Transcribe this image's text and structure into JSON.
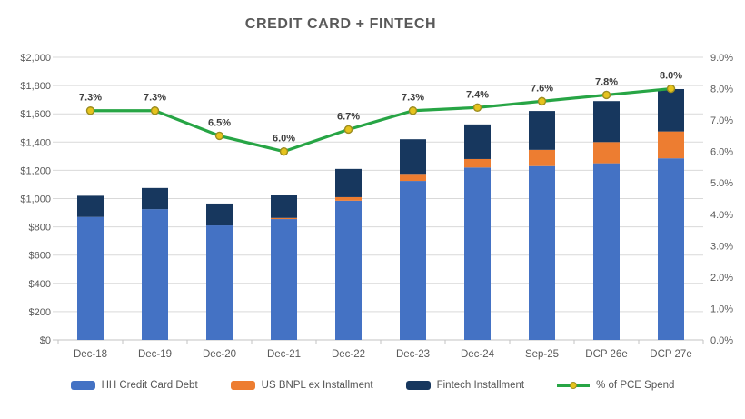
{
  "chart_data": {
    "type": "bar",
    "subtype": "stacked-column-with-line",
    "title": "CREDIT CARD + FINTECH",
    "categories": [
      "Dec-18",
      "Dec-19",
      "Dec-20",
      "Dec-21",
      "Dec-22",
      "Dec-23",
      "Dec-24",
      "Sep-25",
      "DCP 26e",
      "DCP 27e"
    ],
    "series": [
      {
        "name": "HH Credit Card Debt",
        "type": "bar",
        "axis": "left",
        "color": "#4472c4",
        "values": [
          870,
          925,
          810,
          855,
          985,
          1125,
          1220,
          1230,
          1250,
          1285
        ]
      },
      {
        "name": "US BNPL ex Installment",
        "type": "bar",
        "axis": "left",
        "color": "#ed7d31",
        "values": [
          0,
          0,
          0,
          8,
          25,
          50,
          60,
          115,
          150,
          190
        ]
      },
      {
        "name": "Fintech Installment",
        "type": "bar",
        "axis": "left",
        "color": "#17375e",
        "values": [
          150,
          150,
          155,
          160,
          200,
          245,
          245,
          275,
          290,
          300
        ]
      },
      {
        "name": "% of PCE Spend",
        "type": "line",
        "axis": "right",
        "color": "#27a545",
        "marker_fill": "#e6c31d",
        "marker_stroke": "#9c8d21",
        "values": [
          7.3,
          7.3,
          6.5,
          6.0,
          6.7,
          7.3,
          7.4,
          7.6,
          7.8,
          8.0
        ],
        "labels": [
          "7.3%",
          "7.3%",
          "6.5%",
          "6.0%",
          "6.7%",
          "7.3%",
          "7.4%",
          "7.6%",
          "7.8%",
          "8.0%"
        ]
      }
    ],
    "left_axis": {
      "min": 0,
      "max": 2000,
      "step": 200,
      "tick_labels_top_to_bottom": [
        "$2,000",
        "$1,800",
        "$1,600",
        "$1,400",
        "$1,200",
        "$1,000",
        "$800",
        "$600",
        "$400",
        "$200",
        "$0"
      ]
    },
    "right_axis": {
      "min": 0,
      "max": 9,
      "step": 1,
      "tick_labels_top_to_bottom": [
        "9.0%",
        "8.0%",
        "7.0%",
        "6.0%",
        "5.0%",
        "4.0%",
        "3.0%",
        "2.0%",
        "1.0%",
        "0.0%"
      ]
    },
    "grid": true,
    "legend_position": "bottom",
    "colors": {
      "gridline": "#d9d9d9",
      "axis_line": "#c3c3c3",
      "tick_text": "#595959",
      "category_text": "#595959",
      "data_label_text": "#3f3f3f",
      "title_text": "#595959",
      "legend_text": "#555555",
      "background": "#ffffff"
    }
  }
}
